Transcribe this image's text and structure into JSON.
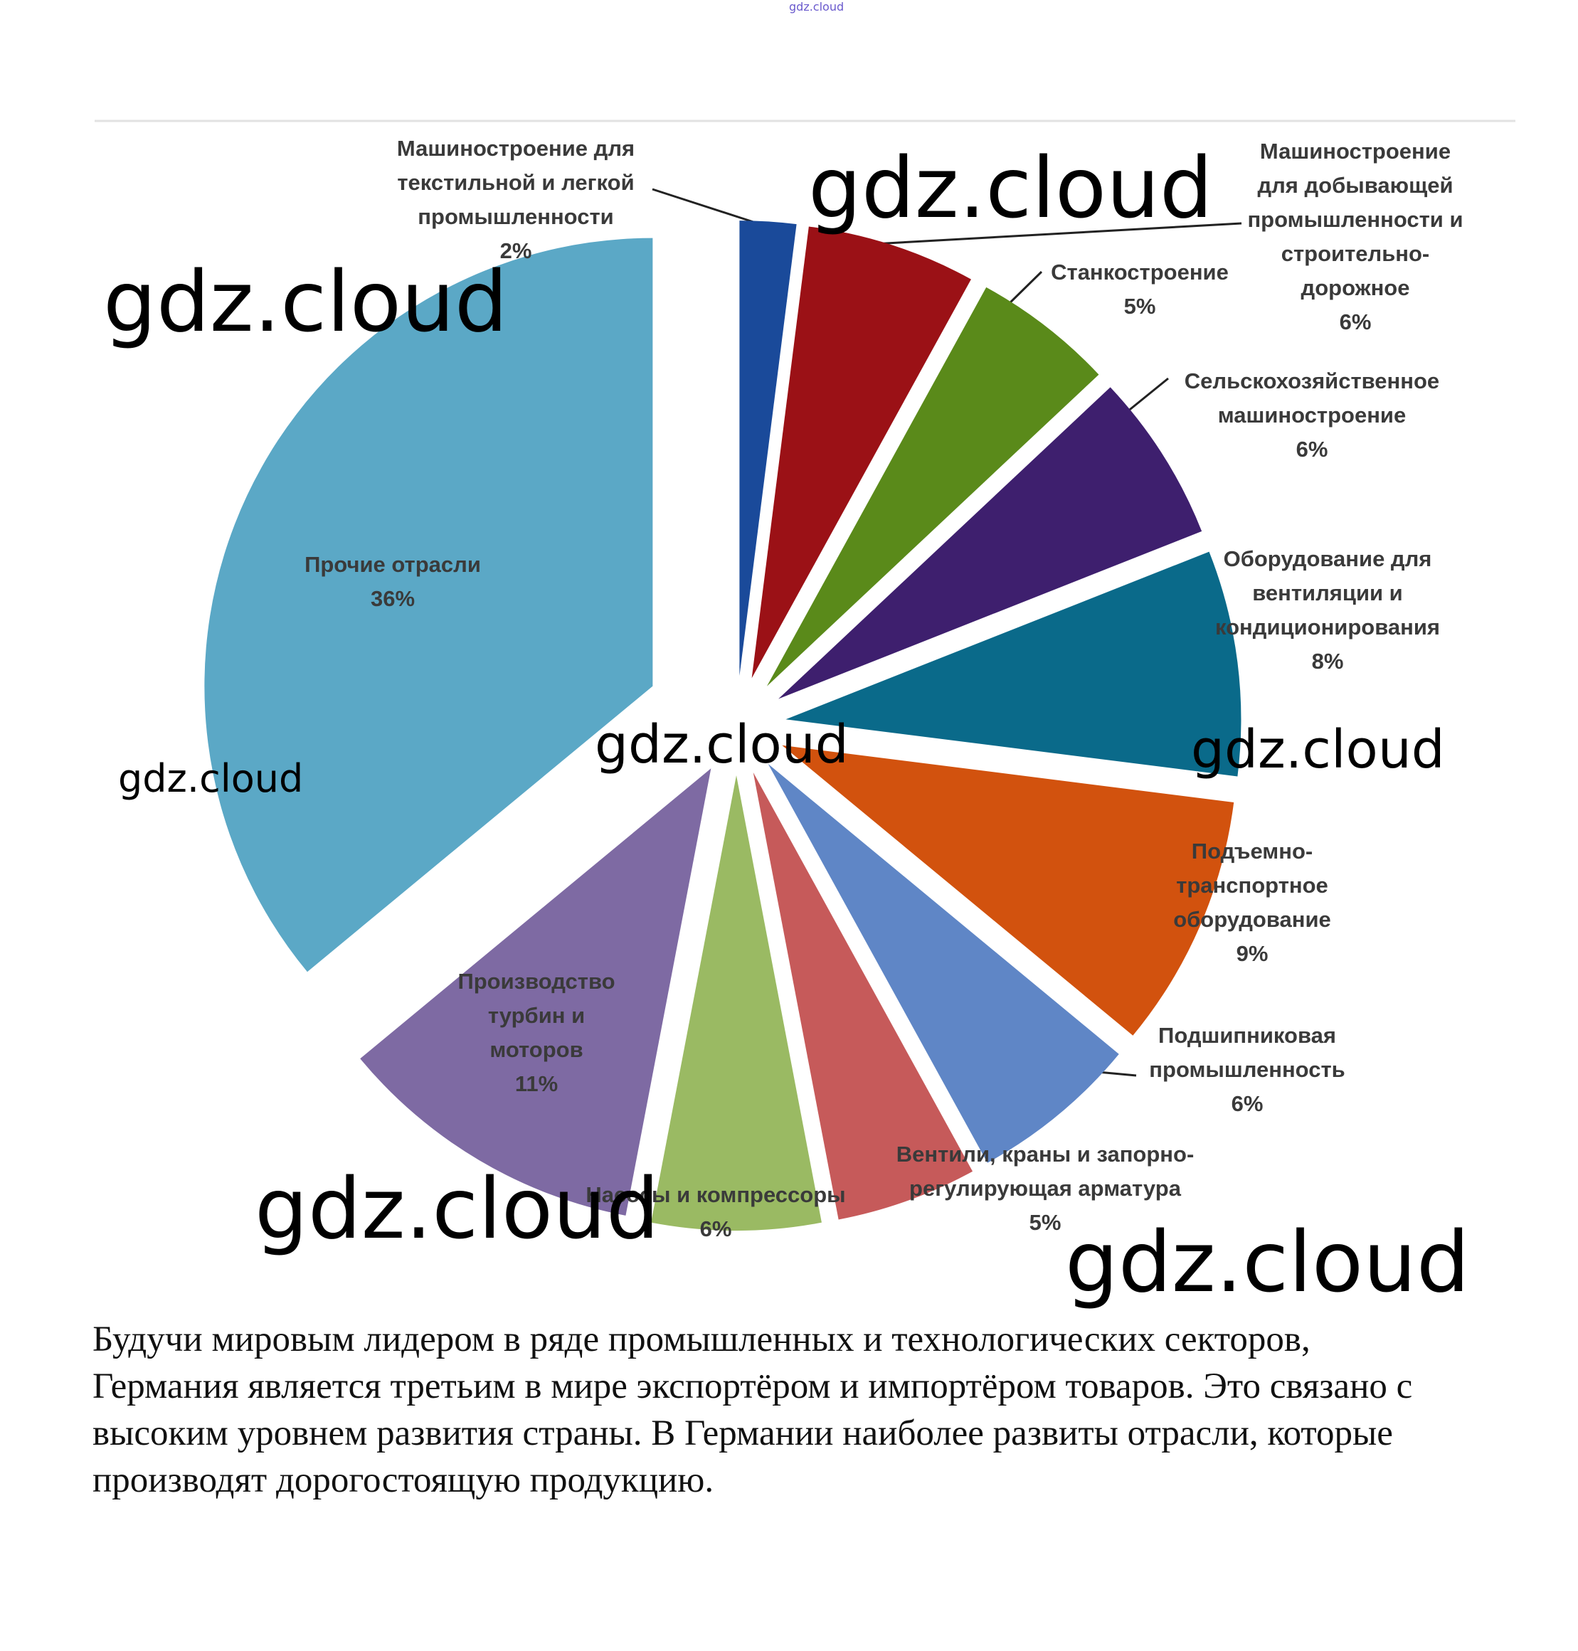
{
  "chart_data": {
    "type": "pie",
    "categories": [
      "Машиностроение для текстильной и легкой промышленности",
      "Машиностроение для добывающей промышленности и строительно-дорожное",
      "Станкостроение",
      "Сельскохозяйственное машиностроение",
      "Оборудование для вентиляции и кондиционирования",
      "Подъемно-транспортное оборудование",
      "Подшипниковая промышленность",
      "Вентили, краны и запорно-регулирующая арматура",
      "Насосы и компрессоры",
      "Производство турбин и моторов",
      "Прочие отрасли"
    ],
    "values": [
      2,
      6,
      5,
      6,
      8,
      9,
      6,
      5,
      6,
      11,
      36
    ],
    "value_labels": [
      "2%",
      "6%",
      "5%",
      "6%",
      "8%",
      "9%",
      "6%",
      "5%",
      "6%",
      "11%",
      "36%"
    ],
    "colors": [
      "#1a4a9a",
      "#9b1116",
      "#5a8a1a",
      "#3e1f6e",
      "#0a6a8a",
      "#d2520e",
      "#5f86c6",
      "#c65a5a",
      "#9aba63",
      "#7e6aa3",
      "#5ba8c6"
    ]
  },
  "watermark": "gdz.cloud",
  "caption": "Будучи мировым лидером в ряде промышленных и технологических секторов, Германия является третьим в мире экспортёром и импортёром товаров. Это связано с высоким уровнем развития страны. В Германии наиболее развиты отрасли, которые производят дорогостоящую продукцию."
}
